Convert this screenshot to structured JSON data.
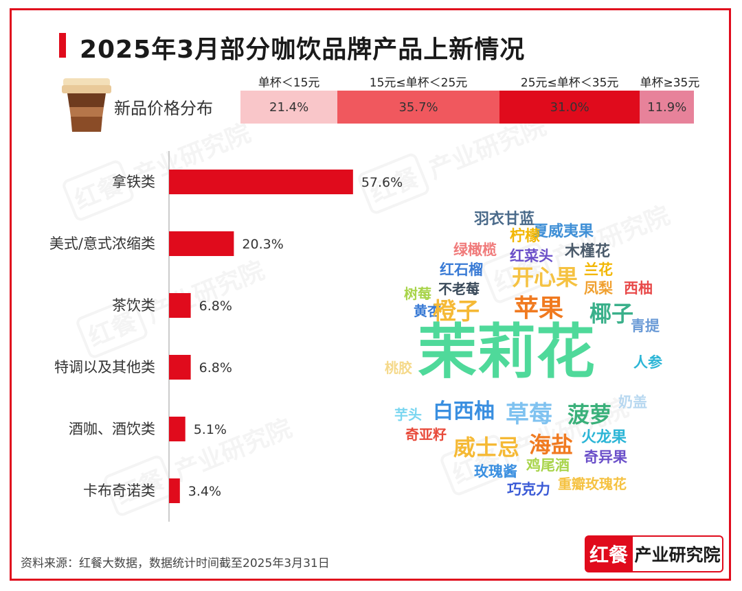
{
  "title": "2025年3月部分咖饮品牌产品上新情况",
  "watermark": {
    "brand": "红餐",
    "org": "产业研究院"
  },
  "price": {
    "label": "新品价格分布",
    "segments": [
      {
        "range": "单杯＜15元",
        "percent": 21.4,
        "label": "21.4%",
        "color": "#f9c6c9"
      },
      {
        "range": "15元≤单杯＜25元",
        "percent": 35.7,
        "label": "35.7%",
        "color": "#f0585e"
      },
      {
        "range": "25元≤单杯＜35元",
        "percent": 31.0,
        "label": "31.0%",
        "color": "#e00b1c"
      },
      {
        "range": "单杯≥35元",
        "percent": 11.9,
        "label": "11.9%",
        "color": "#e7829a"
      }
    ]
  },
  "chart_data": {
    "type": "bar",
    "orientation": "horizontal",
    "categories": [
      "拿铁类",
      "美式/意式浓缩类",
      "茶饮类",
      "特调以及其他类",
      "酒咖、酒饮类",
      "卡布奇诺类"
    ],
    "values": [
      57.6,
      20.3,
      6.8,
      6.8,
      5.1,
      3.4
    ],
    "labels": [
      "57.6%",
      "20.3%",
      "6.8%",
      "6.8%",
      "5.1%",
      "3.4%"
    ],
    "unit": "%",
    "xlim": [
      0,
      100
    ],
    "color": "#e00b1c"
  },
  "wordcloud": [
    {
      "text": "羽衣甘蓝",
      "color": "#4a6a8a",
      "size": 22
    },
    {
      "text": "夏威夷果",
      "color": "#3f8fd6",
      "size": 22
    },
    {
      "text": "柠檬",
      "color": "#f2b705",
      "size": 22
    },
    {
      "text": "绿橄榄",
      "color": "#f07a7a",
      "size": 21
    },
    {
      "text": "红菜头",
      "color": "#6a4fc9",
      "size": 21
    },
    {
      "text": "木槿花",
      "color": "#4a5a6a",
      "size": 22
    },
    {
      "text": "红石榴",
      "color": "#3a7bd5",
      "size": 21
    },
    {
      "text": "兰花",
      "color": "#f2b705",
      "size": 21
    },
    {
      "text": "开心果",
      "color": "#f5c242",
      "size": 32
    },
    {
      "text": "不老莓",
      "color": "#3a4a5a",
      "size": 20
    },
    {
      "text": "凤梨",
      "color": "#f0a030",
      "size": 21
    },
    {
      "text": "西柚",
      "color": "#e84a4a",
      "size": 21
    },
    {
      "text": "树莓",
      "color": "#a8d44a",
      "size": 20
    },
    {
      "text": "黄杏",
      "color": "#3a7bd5",
      "size": 20
    },
    {
      "text": "橙子",
      "color": "#f5b935",
      "size": 34
    },
    {
      "text": "苹果",
      "color": "#f07a20",
      "size": 36
    },
    {
      "text": "椰子",
      "color": "#3ab08a",
      "size": 32
    },
    {
      "text": "青提",
      "color": "#6a9ad6",
      "size": 21
    },
    {
      "text": "茉莉花",
      "color": "#4fd99a",
      "size": 86
    },
    {
      "text": "桃胶",
      "color": "#f5d98a",
      "size": 20
    },
    {
      "text": "人参",
      "color": "#2bb5d6",
      "size": 21
    },
    {
      "text": "芋头",
      "color": "#7ad6f0",
      "size": 20
    },
    {
      "text": "白西柚",
      "color": "#3a8fe0",
      "size": 30
    },
    {
      "text": "草莓",
      "color": "#7fc2f0",
      "size": 34
    },
    {
      "text": "菠萝",
      "color": "#3ab07a",
      "size": 32
    },
    {
      "text": "奶盖",
      "color": "#b8d8f0",
      "size": 21
    },
    {
      "text": "奇亚籽",
      "color": "#e84a3a",
      "size": 20
    },
    {
      "text": "威士忌",
      "color": "#f5b935",
      "size": 32
    },
    {
      "text": "海盐",
      "color": "#f07a20",
      "size": 32
    },
    {
      "text": "火龙果",
      "color": "#2bb5d6",
      "size": 22
    },
    {
      "text": "奇异果",
      "color": "#6a4fc9",
      "size": 21
    },
    {
      "text": "玫瑰酱",
      "color": "#3a8fe0",
      "size": 21
    },
    {
      "text": "鸡尾酒",
      "color": "#a8d44a",
      "size": 21
    },
    {
      "text": "巧克力",
      "color": "#3a5ad6",
      "size": 21
    },
    {
      "text": "重瓣玫瑰花",
      "color": "#f5c242",
      "size": 20
    }
  ],
  "footer": {
    "source": "资料来源：红餐大数据，数据统计时间截至2025年3月31日"
  },
  "logo": {
    "left": "红餐",
    "right": "产业研究院"
  }
}
